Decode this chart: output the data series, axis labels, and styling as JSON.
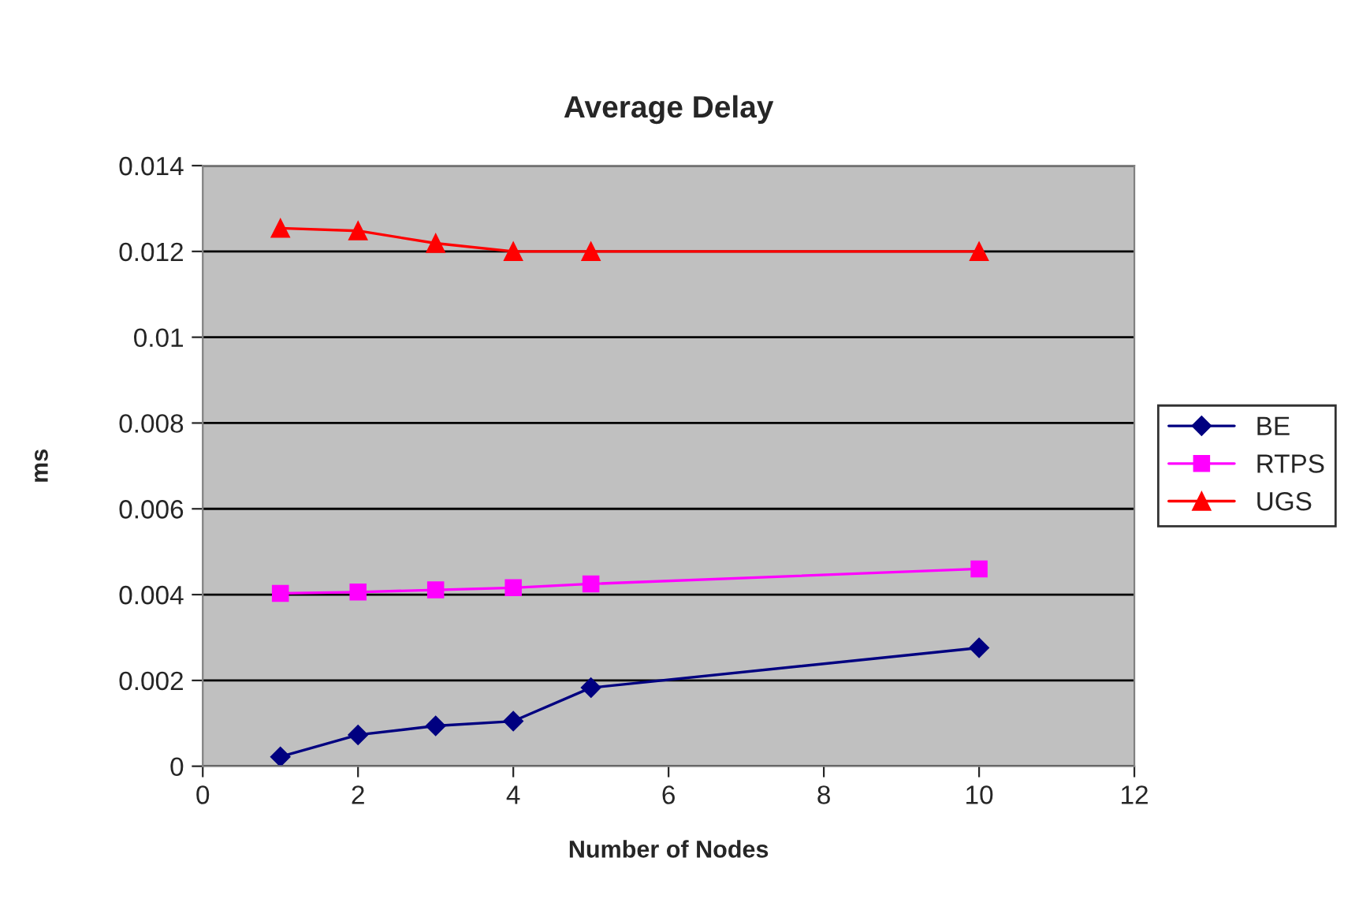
{
  "chart_data": {
    "type": "line",
    "title": "Average Delay",
    "xlabel": "Number of Nodes",
    "ylabel": "ms",
    "x": [
      1,
      2,
      3,
      4,
      5,
      10
    ],
    "series": [
      {
        "name": "BE",
        "color": "#000080",
        "marker": "diamond",
        "values": [
          0.00022,
          0.00073,
          0.00094,
          0.00105,
          0.00183,
          0.00276
        ]
      },
      {
        "name": "RTPS",
        "color": "#ff00ff",
        "marker": "square",
        "values": [
          0.00403,
          0.00406,
          0.00411,
          0.00416,
          0.00425,
          0.0046
        ]
      },
      {
        "name": "UGS",
        "color": "#ff0000",
        "marker": "triangle",
        "values": [
          0.01254,
          0.01248,
          0.01219,
          0.012,
          0.012,
          0.012
        ]
      }
    ],
    "xlim": [
      0,
      12
    ],
    "xticks": [
      0,
      2,
      4,
      6,
      8,
      10,
      12
    ],
    "ylim": [
      0,
      0.014
    ],
    "yticks": [
      0,
      0.002,
      0.004,
      0.006,
      0.008,
      0.01,
      0.012,
      0.014
    ],
    "grid": "y",
    "legend": "right",
    "line_style": "solid"
  }
}
